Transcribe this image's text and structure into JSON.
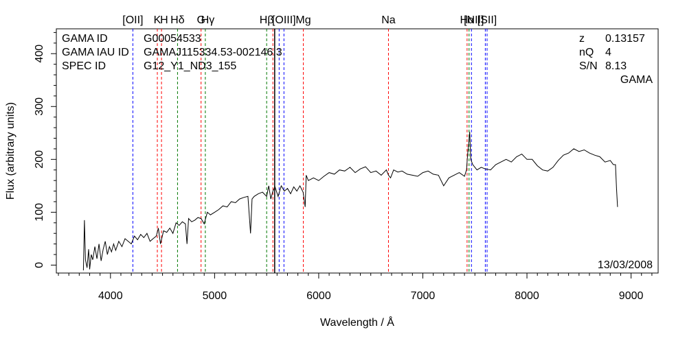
{
  "chart_data": {
    "type": "line",
    "title": "",
    "xlabel": "Wavelength / Å",
    "ylabel": "Flux (arbitrary units)",
    "xlim": [
      3480,
      9260
    ],
    "ylim": [
      -15,
      447
    ],
    "x_ticks": [
      4000,
      5000,
      6000,
      7000,
      8000,
      9000
    ],
    "x_tick_labels": [
      "4000",
      "5000",
      "6000",
      "7000",
      "8000",
      "9000"
    ],
    "y_ticks": [
      0,
      100,
      200,
      300,
      400
    ],
    "y_tick_labels": [
      "0",
      "100",
      "200",
      "300",
      "400"
    ],
    "grid": false,
    "info_left": [
      {
        "key": "GAMA ID",
        "value": "G00054533"
      },
      {
        "key": "GAMA IAU ID",
        "value": "GAMAJ115334.53-002146.3"
      },
      {
        "key": "SPEC ID",
        "value": "G12_Y1_ND3_155"
      }
    ],
    "info_right": [
      {
        "key": "z",
        "value": "0.13157"
      },
      {
        "key": "nQ",
        "value": "4"
      },
      {
        "key": "S/N",
        "value": "8.13"
      }
    ],
    "survey": "GAMA",
    "date": "13/03/2008",
    "marker_colors": {
      "red": "#ff0000",
      "green": "#007700",
      "blue": "#0000ff",
      "black": "#000000"
    },
    "line_markers": [
      {
        "wavelength": 4215,
        "color": "blue"
      },
      {
        "wavelength": 4450,
        "color": "red"
      },
      {
        "wavelength": 4490,
        "color": "red"
      },
      {
        "wavelength": 4644,
        "color": "green"
      },
      {
        "wavelength": 4870,
        "color": "red"
      },
      {
        "wavelength": 4911,
        "color": "green"
      },
      {
        "wavelength": 5500,
        "color": "green"
      },
      {
        "wavelength": 5560,
        "color": "red"
      },
      {
        "wavelength": 5620,
        "color": "blue"
      },
      {
        "wavelength": 5666,
        "color": "blue"
      },
      {
        "wavelength": 5852,
        "color": "red"
      },
      {
        "wavelength": 6670,
        "color": "red"
      },
      {
        "wavelength": 7425,
        "color": "red"
      },
      {
        "wavelength": 7444,
        "color": "green"
      },
      {
        "wavelength": 7467,
        "color": "blue"
      },
      {
        "wavelength": 7600,
        "color": "blue"
      },
      {
        "wavelength": 7617,
        "color": "blue"
      }
    ],
    "sky_line": 5577,
    "line_labels": [
      {
        "text": "[OII]",
        "wavelength": 4215
      },
      {
        "text": "K",
        "wavelength": 4450
      },
      {
        "text": "H",
        "wavelength": 4515
      },
      {
        "text": "Hδ",
        "wavelength": 4644
      },
      {
        "text": "G",
        "wavelength": 4870
      },
      {
        "text": "Hγ",
        "wavelength": 4935
      },
      {
        "text": "Hβ",
        "wavelength": 5500
      },
      {
        "text": "[OIII]",
        "wavelength": 5666
      },
      {
        "text": "Mg",
        "wavelength": 5852
      },
      {
        "text": "Na",
        "wavelength": 6670
      },
      {
        "text": "Hα",
        "wavelength": 7425
      },
      {
        "text": "[NII]",
        "wavelength": 7490
      },
      {
        "text": "[SII]",
        "wavelength": 7617
      }
    ],
    "series": [
      {
        "name": "spectrum",
        "x": [
          3740,
          3750,
          3760,
          3775,
          3790,
          3800,
          3815,
          3830,
          3850,
          3870,
          3890,
          3910,
          3930,
          3950,
          3970,
          3990,
          4010,
          4030,
          4050,
          4080,
          4110,
          4140,
          4170,
          4200,
          4230,
          4260,
          4290,
          4320,
          4350,
          4380,
          4410,
          4440,
          4460,
          4480,
          4510,
          4540,
          4570,
          4600,
          4630,
          4660,
          4690,
          4720,
          4735,
          4750,
          4780,
          4810,
          4840,
          4870,
          4900,
          4930,
          4960,
          5000,
          5040,
          5080,
          5120,
          5160,
          5200,
          5240,
          5280,
          5320,
          5345,
          5360,
          5380,
          5420,
          5460,
          5500,
          5520,
          5540,
          5560,
          5580,
          5610,
          5640,
          5670,
          5700,
          5730,
          5760,
          5790,
          5820,
          5850,
          5870,
          5880,
          5900,
          5950,
          6000,
          6050,
          6100,
          6150,
          6200,
          6250,
          6300,
          6350,
          6400,
          6450,
          6500,
          6550,
          6600,
          6650,
          6670,
          6690,
          6720,
          6760,
          6800,
          6850,
          6900,
          6950,
          7000,
          7050,
          7100,
          7150,
          7200,
          7250,
          7300,
          7350,
          7400,
          7420,
          7430,
          7440,
          7450,
          7460,
          7480,
          7520,
          7560,
          7600,
          7650,
          7700,
          7750,
          7800,
          7850,
          7900,
          7950,
          8000,
          8050,
          8100,
          8150,
          8200,
          8250,
          8300,
          8350,
          8400,
          8450,
          8500,
          8550,
          8600,
          8650,
          8700,
          8750,
          8800,
          8830,
          8850,
          8860,
          8870
        ],
        "values": [
          -10,
          85,
          10,
          -5,
          30,
          -8,
          20,
          10,
          35,
          12,
          40,
          8,
          30,
          45,
          20,
          35,
          25,
          40,
          28,
          45,
          35,
          50,
          45,
          40,
          55,
          48,
          58,
          52,
          60,
          45,
          50,
          55,
          70,
          40,
          65,
          62,
          70,
          60,
          80,
          75,
          82,
          78,
          40,
          88,
          82,
          85,
          90,
          88,
          78,
          100,
          95,
          100,
          105,
          112,
          110,
          120,
          118,
          125,
          128,
          130,
          60,
          125,
          130,
          135,
          138,
          130,
          150,
          125,
          140,
          148,
          130,
          150,
          140,
          145,
          135,
          148,
          140,
          150,
          138,
          110,
          170,
          160,
          165,
          160,
          168,
          175,
          172,
          180,
          178,
          185,
          175,
          182,
          186,
          175,
          178,
          170,
          180,
          170,
          165,
          180,
          176,
          178,
          172,
          170,
          168,
          175,
          178,
          172,
          170,
          150,
          165,
          170,
          175,
          168,
          180,
          210,
          230,
          252,
          200,
          190,
          180,
          185,
          182,
          180,
          190,
          195,
          200,
          195,
          205,
          210,
          200,
          200,
          188,
          180,
          178,
          185,
          198,
          208,
          212,
          220,
          215,
          218,
          212,
          208,
          205,
          195,
          198,
          190,
          190,
          145,
          110
        ]
      }
    ]
  }
}
